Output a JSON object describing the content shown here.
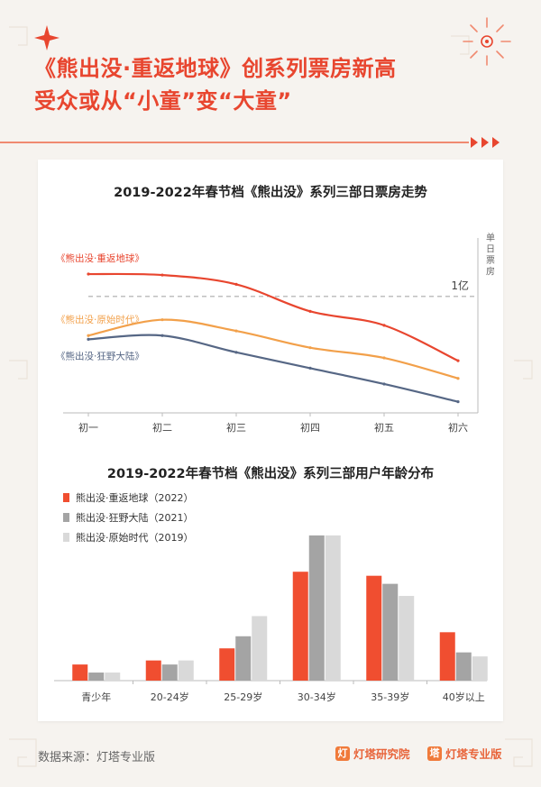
{
  "header": {
    "headline_line1": "《熊出没·重返地球》创系列票房新高",
    "headline_line2": "受众或从“小童”变“大童”"
  },
  "chart_data": [
    {
      "type": "line",
      "title": "2019-2022年春节档《熊出没》系列三部日票房走势",
      "ylabel": "单日票房",
      "y_reference": {
        "label": "1亿"
      },
      "categories": [
        "初一",
        "初二",
        "初三",
        "初四",
        "初五",
        "初六"
      ],
      "series": [
        {
          "name": "《熊出没·重返地球》",
          "color": "#e8462f",
          "values": [
            1.24,
            1.23,
            1.13,
            0.84,
            0.69,
            0.31
          ]
        },
        {
          "name": "《熊出没·原始时代》",
          "color": "#f2a04a",
          "values": [
            0.58,
            0.75,
            0.63,
            0.45,
            0.34,
            0.12
          ]
        },
        {
          "name": "《熊出没·狂野大陆》",
          "color": "#566785",
          "values": [
            0.54,
            0.58,
            0.4,
            0.23,
            0.06,
            -0.13
          ]
        }
      ],
      "ylim": [
        -0.25,
        1.55
      ]
    },
    {
      "type": "bar",
      "title": "2019-2022年春节档《熊出没》系列三部用户年龄分布",
      "legend_position": "top-left",
      "categories": [
        "青少年",
        "20-24岁",
        "25-29岁",
        "30-34岁",
        "35-39岁",
        "40岁以上"
      ],
      "series": [
        {
          "name": "熊出没·重返地球（2022）",
          "color": "#f04e30",
          "values": [
            4,
            5,
            8,
            27,
            26,
            12
          ]
        },
        {
          "name": "熊出没·狂野大陆（2021）",
          "color": "#a4a4a4",
          "values": [
            2,
            4,
            11,
            36,
            24,
            7
          ]
        },
        {
          "name": "熊出没·原始时代（2019）",
          "color": "#d9d9d9",
          "values": [
            2,
            5,
            16,
            36,
            21,
            6
          ]
        }
      ],
      "ylim": [
        0,
        38
      ]
    }
  ],
  "footer": {
    "source": "数据来源：灯塔专业版",
    "brand1": "灯塔研究院",
    "brand2": "灯塔专业版"
  }
}
